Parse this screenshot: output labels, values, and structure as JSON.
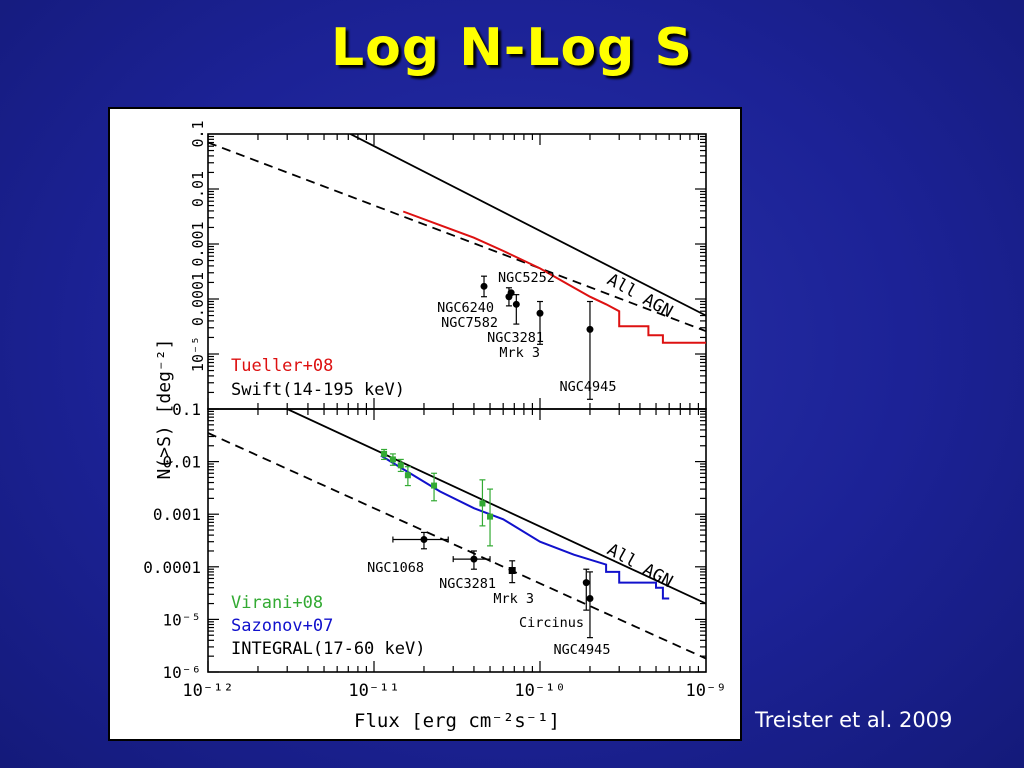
{
  "slide": {
    "title": "Log N-Log S",
    "citation": "Treister et al. 2009"
  },
  "chart_data": [
    {
      "type": "line",
      "panel": "top",
      "xscale": "log",
      "yscale": "log",
      "xlim": [
        1e-12,
        1e-09
      ],
      "ylim": [
        1e-06,
        0.1
      ],
      "xlabel": "Flux [erg cm⁻²s⁻¹]",
      "ylabel": "N(>S) [deg⁻²]",
      "y_ticks": [
        {
          "v": 0.1,
          "label": "0.1"
        },
        {
          "v": 0.01,
          "label": "0.01"
        },
        {
          "v": 0.001,
          "label": "0.001"
        },
        {
          "v": 0.0001,
          "label": "0.0001"
        },
        {
          "v": 1e-05,
          "label": "10⁻⁵"
        }
      ],
      "legend": [
        {
          "text": "Tueller+08",
          "color": "#dd1111"
        },
        {
          "text": "Swift(14-195 keV)",
          "color": "#000000"
        }
      ],
      "series": [
        {
          "name": "All AGN",
          "style": "solid",
          "color": "#000000",
          "x": [
            7.2e-12,
            1e-09
          ],
          "y": [
            0.1,
            5e-05
          ]
        },
        {
          "style": "dashed",
          "color": "#000000",
          "x": [
            1e-12,
            1e-09
          ],
          "y": [
            0.07,
            2.6e-05
          ]
        },
        {
          "style": "step",
          "color": "#dd1111",
          "x": [
            1.5e-11,
            2.5e-11,
            4e-11,
            6e-11,
            1e-10,
            1.5e-10,
            2e-10,
            2.5e-10,
            3e-10,
            3e-10,
            4.5e-10,
            4.5e-10,
            5.5e-10,
            5.5e-10,
            1e-09
          ],
          "y": [
            0.0039,
            0.0022,
            0.0013,
            0.00075,
            0.00036,
            0.00018,
            0.00011,
            8e-05,
            6e-05,
            3.2e-05,
            3.2e-05,
            2.2e-05,
            2.2e-05,
            1.6e-05,
            1.6e-05
          ]
        }
      ],
      "points": [
        {
          "label": "NGC5252",
          "x": 4.6e-11,
          "y": 0.00017,
          "yerr": [
            0.00011,
            0.00026
          ],
          "marker": "circle"
        },
        {
          "label": "NGC6240",
          "x": 6.5e-11,
          "y": 0.00011,
          "yerr": [
            7.5e-05,
            0.00016
          ],
          "marker": "circle"
        },
        {
          "label": "NGC7582",
          "x": 6.7e-11,
          "y": 0.00013,
          "marker": "circle"
        },
        {
          "label": "NGC3281",
          "x": 7.2e-11,
          "y": 8e-05,
          "yerr": [
            3.5e-05,
            0.00012
          ],
          "marker": "circle"
        },
        {
          "label": "Mrk 3",
          "x": 1e-10,
          "y": 5.5e-05,
          "yerr": [
            1.5e-05,
            9e-05
          ],
          "marker": "circle"
        },
        {
          "label": "NGC4945",
          "x": 2e-10,
          "y": 2.8e-05,
          "yerr": [
            1.5e-06,
            9e-05
          ],
          "marker": "circle"
        }
      ],
      "annotation": "All AGN"
    },
    {
      "type": "line",
      "panel": "bottom",
      "xscale": "log",
      "yscale": "log",
      "xlim": [
        1e-12,
        1e-09
      ],
      "ylim": [
        1e-06,
        0.1
      ],
      "x_ticks": [
        {
          "v": 1e-12,
          "label": "10⁻¹²"
        },
        {
          "v": 1e-11,
          "label": "10⁻¹¹"
        },
        {
          "v": 1e-10,
          "label": "10⁻¹⁰"
        },
        {
          "v": 1e-09,
          "label": "10⁻⁹"
        }
      ],
      "y_ticks": [
        {
          "v": 0.1,
          "label": "0.1"
        },
        {
          "v": 0.01,
          "label": "0.01"
        },
        {
          "v": 0.001,
          "label": "0.001"
        },
        {
          "v": 0.0001,
          "label": "0.0001"
        },
        {
          "v": 1e-05,
          "label": "10⁻⁵"
        },
        {
          "v": 1e-06,
          "label": "10⁻⁶"
        }
      ],
      "legend": [
        {
          "text": "Virani+08",
          "color": "#33aa33"
        },
        {
          "text": "Sazonov+07",
          "color": "#1111cc"
        },
        {
          "text": "INTEGRAL(17-60 keV)",
          "color": "#000000"
        }
      ],
      "series": [
        {
          "name": "All AGN",
          "style": "solid",
          "color": "#000000",
          "x": [
            3e-12,
            1e-09
          ],
          "y": [
            0.1,
            2e-05
          ]
        },
        {
          "style": "dashed",
          "color": "#000000",
          "x": [
            1e-12,
            1e-09
          ],
          "y": [
            0.035,
            1.8e-06
          ]
        },
        {
          "style": "step",
          "color": "#1111cc",
          "x": [
            1.1e-11,
            1.5e-11,
            2.5e-11,
            4e-11,
            6e-11,
            1e-10,
            1.6e-10,
            2.5e-10,
            2.5e-10,
            3e-10,
            3e-10,
            5e-10,
            5e-10,
            5.5e-10,
            5.5e-10,
            6e-10
          ],
          "y": [
            0.013,
            0.0072,
            0.0027,
            0.0013,
            0.0008,
            0.0003,
            0.00017,
            0.00011,
            8e-05,
            8e-05,
            5e-05,
            5e-05,
            4e-05,
            4e-05,
            2.5e-05,
            2.5e-05
          ]
        }
      ],
      "green_points": [
        {
          "x": 1.15e-11,
          "y": 0.014,
          "yerr": [
            0.011,
            0.017
          ]
        },
        {
          "x": 1.3e-11,
          "y": 0.011,
          "yerr": [
            0.0085,
            0.014
          ]
        },
        {
          "x": 1.45e-11,
          "y": 0.0085,
          "yerr": [
            0.0065,
            0.011
          ]
        },
        {
          "x": 1.6e-11,
          "y": 0.0055,
          "yerr": [
            0.0035,
            0.008
          ]
        },
        {
          "x": 2.3e-11,
          "y": 0.0035,
          "yerr": [
            0.0018,
            0.006
          ]
        },
        {
          "x": 4.5e-11,
          "y": 0.0016,
          "yerr": [
            0.0006,
            0.0045
          ]
        },
        {
          "x": 5e-11,
          "y": 0.0009,
          "yerr": [
            0.00025,
            0.003
          ]
        }
      ],
      "points": [
        {
          "label": "NGC1068",
          "x": 2e-11,
          "y": 0.00033,
          "yerr": [
            0.00022,
            0.00045
          ],
          "xerr": [
            1.3e-11,
            2.8e-11
          ],
          "marker": "circle"
        },
        {
          "label": "NGC3281",
          "x": 4e-11,
          "y": 0.00014,
          "yerr": [
            9e-05,
            0.0002
          ],
          "xerr": [
            3e-11,
            5e-11
          ],
          "marker": "circle"
        },
        {
          "label": "Mrk 3",
          "x": 6.8e-11,
          "y": 8.5e-05,
          "yerr": [
            5e-05,
            0.00013
          ],
          "marker": "square"
        },
        {
          "label": "Circinus",
          "x": 1.9e-10,
          "y": 5e-05,
          "yerr": [
            1.5e-05,
            9e-05
          ],
          "marker": "circle"
        },
        {
          "label": "NGC4945",
          "x": 2e-10,
          "y": 2.5e-05,
          "yerr": [
            4.5e-06,
            8e-05
          ],
          "marker": "circle"
        }
      ],
      "annotation": "All AGN"
    }
  ]
}
